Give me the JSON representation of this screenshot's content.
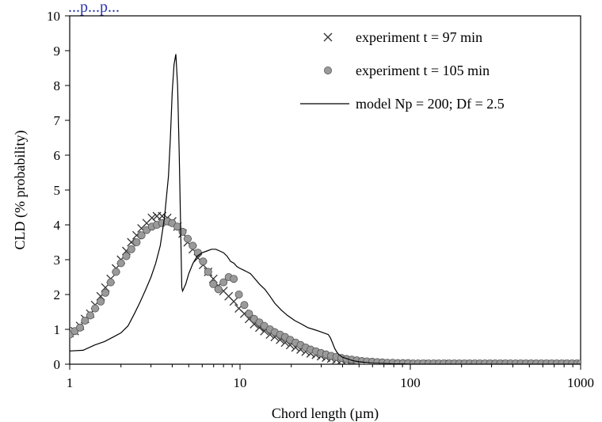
{
  "header_link_text": "...p...p...",
  "chart_data": {
    "type": "line",
    "xlabel": "Chord length (µm)",
    "ylabel": "CLD (% probability)",
    "xscale": "log",
    "xlim": [
      1,
      1000
    ],
    "ylim": [
      0,
      10
    ],
    "x_ticks": [
      "1",
      "10",
      "100",
      "1000"
    ],
    "y_ticks": [
      "0",
      "1",
      "2",
      "3",
      "4",
      "5",
      "6",
      "7",
      "8",
      "9",
      "10"
    ],
    "grid": false,
    "legend_position": "top-right",
    "series": [
      {
        "name": "experiment t = 97 min",
        "marker": "x",
        "color": "#333333",
        "x": [
          1.0,
          1.07,
          1.15,
          1.23,
          1.32,
          1.41,
          1.52,
          1.62,
          1.74,
          1.87,
          2.0,
          2.15,
          2.3,
          2.47,
          2.64,
          2.83,
          3.04,
          3.25,
          3.49,
          3.74,
          4.0,
          4.29,
          4.6,
          4.93,
          5.28,
          5.66,
          6.07,
          6.5,
          6.97,
          7.47,
          8.0,
          8.58,
          9.19,
          9.85,
          10.6,
          11.3,
          12.1,
          13.0,
          13.9,
          15.0,
          16.0,
          17.2,
          18.4,
          19.7,
          21.2,
          22.7,
          24.3,
          26.0,
          27.9,
          29.9,
          32.0,
          34.3,
          36.8,
          39.4,
          42.2,
          45.3,
          48.5,
          52.0,
          55.7,
          59.7,
          64.0,
          68.6,
          73.5,
          78.8,
          84.4,
          90.5,
          97.0,
          104,
          111,
          119,
          128,
          137,
          147,
          157,
          169,
          181,
          194,
          208,
          223,
          239,
          256,
          274,
          294,
          315,
          337,
          362,
          388,
          415,
          445,
          477,
          512,
          549,
          588,
          630,
          676,
          724,
          776,
          832,
          891,
          955,
          1000
        ],
        "values": [
          0.9,
          0.95,
          1.1,
          1.3,
          1.45,
          1.7,
          1.95,
          2.2,
          2.45,
          2.75,
          3.0,
          3.25,
          3.5,
          3.7,
          3.9,
          4.05,
          4.2,
          4.25,
          4.25,
          4.2,
          4.1,
          3.95,
          3.75,
          3.5,
          3.3,
          3.05,
          2.85,
          2.65,
          2.45,
          2.25,
          2.1,
          1.95,
          1.8,
          1.6,
          1.45,
          1.3,
          1.15,
          1.05,
          0.95,
          0.85,
          0.78,
          0.7,
          0.62,
          0.55,
          0.48,
          0.42,
          0.36,
          0.31,
          0.27,
          0.23,
          0.19,
          0.16,
          0.13,
          0.11,
          0.09,
          0.07,
          0.06,
          0.05,
          0.04,
          0.03,
          0.03,
          0.02,
          0.02,
          0.01,
          0.01,
          0.01,
          0.01,
          0.01,
          0.01,
          0.01,
          0.01,
          0.01,
          0.01,
          0.01,
          0.01,
          0.01,
          0.01,
          0.01,
          0.01,
          0.01,
          0.01,
          0.01,
          0.01,
          0.01,
          0.01,
          0.01,
          0.01,
          0.01,
          0.01,
          0.01,
          0.01,
          0.01,
          0.01,
          0.01,
          0.01,
          0.01,
          0.01,
          0.01,
          0.01,
          0.01,
          0.01
        ]
      },
      {
        "name": "experiment t = 105 min",
        "marker": "circle",
        "color": "#9a9a9a",
        "x": [
          1.0,
          1.07,
          1.15,
          1.23,
          1.32,
          1.41,
          1.52,
          1.62,
          1.74,
          1.87,
          2.0,
          2.15,
          2.3,
          2.47,
          2.64,
          2.83,
          3.04,
          3.25,
          3.49,
          3.74,
          4.0,
          4.29,
          4.6,
          4.93,
          5.28,
          5.66,
          6.07,
          6.5,
          6.97,
          7.47,
          8.0,
          8.58,
          9.19,
          9.85,
          10.6,
          11.3,
          12.1,
          13.0,
          13.9,
          15.0,
          16.0,
          17.2,
          18.4,
          19.7,
          21.2,
          22.7,
          24.3,
          26.0,
          27.9,
          29.9,
          32.0,
          34.3,
          36.8,
          39.4,
          42.2,
          45.3,
          48.5,
          52.0,
          55.7,
          59.7,
          64.0,
          68.6,
          73.5,
          78.8,
          84.4,
          90.5,
          97.0,
          104,
          111,
          119,
          128,
          137,
          147,
          157,
          169,
          181,
          194,
          208,
          223,
          239,
          256,
          274,
          294,
          315,
          337,
          362,
          388,
          415,
          445,
          477,
          512,
          549,
          588,
          630,
          676,
          724,
          776,
          832,
          891,
          955,
          1000
        ],
        "values": [
          0.85,
          0.95,
          1.05,
          1.25,
          1.4,
          1.6,
          1.8,
          2.05,
          2.35,
          2.65,
          2.9,
          3.1,
          3.3,
          3.5,
          3.7,
          3.85,
          3.95,
          4.0,
          4.05,
          4.1,
          4.05,
          3.95,
          3.8,
          3.6,
          3.4,
          3.2,
          2.95,
          2.65,
          2.3,
          2.15,
          2.35,
          2.5,
          2.45,
          2.0,
          1.7,
          1.45,
          1.3,
          1.2,
          1.1,
          1.0,
          0.92,
          0.85,
          0.78,
          0.7,
          0.62,
          0.55,
          0.48,
          0.42,
          0.37,
          0.32,
          0.28,
          0.24,
          0.21,
          0.18,
          0.15,
          0.13,
          0.11,
          0.09,
          0.08,
          0.07,
          0.06,
          0.05,
          0.04,
          0.04,
          0.03,
          0.03,
          0.03,
          0.02,
          0.02,
          0.02,
          0.02,
          0.02,
          0.02,
          0.02,
          0.02,
          0.02,
          0.02,
          0.02,
          0.02,
          0.02,
          0.02,
          0.02,
          0.02,
          0.02,
          0.02,
          0.02,
          0.02,
          0.02,
          0.02,
          0.02,
          0.02,
          0.02,
          0.02,
          0.02,
          0.02,
          0.02,
          0.02,
          0.02,
          0.02,
          0.02,
          0.02
        ]
      },
      {
        "name": "model Np = 200; Df = 2.5",
        "marker": "line",
        "color": "#000000",
        "x": [
          1.0,
          1.2,
          1.4,
          1.6,
          1.8,
          2.0,
          2.2,
          2.4,
          2.6,
          2.8,
          3.0,
          3.2,
          3.4,
          3.6,
          3.8,
          3.9,
          4.0,
          4.1,
          4.2,
          4.3,
          4.4,
          4.5,
          4.55,
          4.6,
          4.8,
          5.0,
          5.3,
          5.6,
          6.0,
          6.4,
          6.8,
          7.2,
          7.6,
          8.0,
          8.4,
          8.8,
          9.2,
          9.6,
          10.0,
          10.5,
          11.0,
          11.5,
          12.0,
          13.0,
          14.0,
          15.0,
          16.0,
          17.5,
          19.0,
          21.0,
          23.0,
          25.0,
          27.0,
          29.0,
          31.0,
          33.0,
          34.0,
          35.0,
          36.0,
          37.0,
          38.0,
          40.0,
          43.0,
          46.0,
          50.0,
          55.0,
          60.0,
          70.0,
          80.0,
          90.0,
          100.0,
          120.0,
          150.0,
          200.0,
          300.0,
          500.0,
          1000.0
        ],
        "values": [
          0.38,
          0.4,
          0.55,
          0.65,
          0.78,
          0.9,
          1.1,
          1.45,
          1.8,
          2.15,
          2.5,
          2.9,
          3.4,
          4.2,
          5.4,
          6.5,
          7.8,
          8.6,
          8.9,
          8.0,
          6.0,
          3.5,
          2.2,
          2.1,
          2.3,
          2.6,
          2.9,
          3.1,
          3.2,
          3.25,
          3.3,
          3.3,
          3.25,
          3.2,
          3.1,
          2.95,
          2.9,
          2.8,
          2.75,
          2.7,
          2.65,
          2.6,
          2.5,
          2.3,
          2.15,
          1.95,
          1.75,
          1.55,
          1.4,
          1.25,
          1.15,
          1.05,
          1.0,
          0.95,
          0.9,
          0.85,
          0.75,
          0.6,
          0.45,
          0.35,
          0.28,
          0.2,
          0.15,
          0.1,
          0.07,
          0.05,
          0.03,
          0.02,
          0.01,
          0.01,
          0.0,
          0.0,
          0.0,
          0.0,
          0.0,
          0.0,
          0.0
        ]
      }
    ]
  }
}
